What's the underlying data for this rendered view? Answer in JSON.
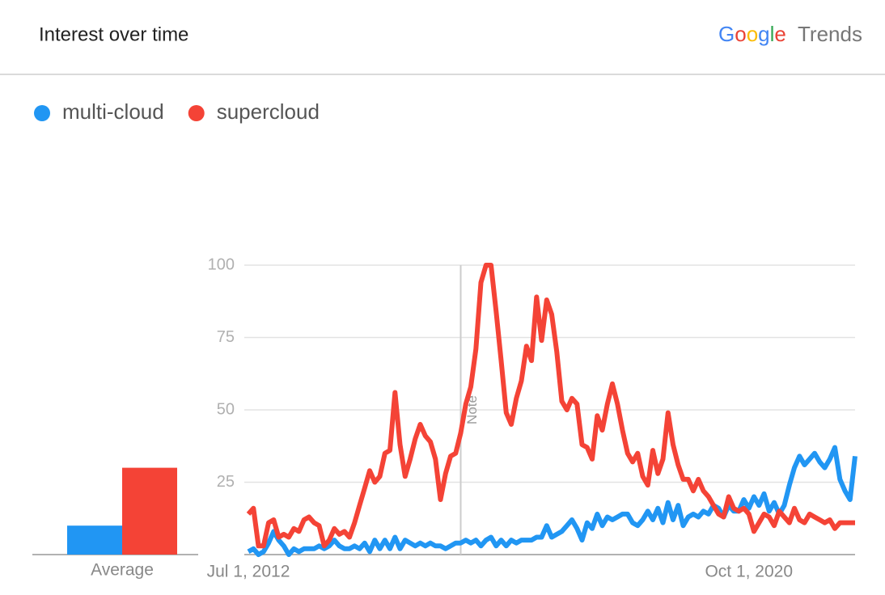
{
  "brand": {
    "name": "Google",
    "product": "Trends"
  },
  "chart_data": [
    {
      "type": "line",
      "title": "Interest over time",
      "categories": [
        "Jul 1, 2012",
        null,
        null,
        null,
        null,
        null,
        null,
        null,
        null,
        null,
        null,
        null,
        null,
        null,
        null,
        null,
        null,
        null,
        null,
        null,
        null,
        null,
        null,
        null,
        null,
        null,
        null,
        null,
        null,
        null,
        null,
        null,
        null,
        null,
        null,
        null,
        null,
        null,
        null,
        null,
        null,
        null,
        null,
        null,
        null,
        null,
        null,
        null,
        null,
        null,
        null,
        null,
        null,
        null,
        null,
        null,
        null,
        null,
        null,
        null,
        null,
        null,
        null,
        null,
        null,
        null,
        null,
        null,
        null,
        null,
        null,
        null,
        null,
        null,
        null,
        null,
        null,
        null,
        null,
        null,
        null,
        null,
        null,
        null,
        null,
        null,
        null,
        null,
        null,
        null,
        null,
        null,
        null,
        null,
        null,
        null,
        null,
        null,
        null,
        "Oct 1, 2020",
        null,
        null,
        null,
        null,
        null,
        null,
        null,
        null,
        null,
        null,
        null,
        null,
        null,
        null,
        null,
        null,
        null,
        null,
        null,
        null,
        null
      ],
      "series": [
        {
          "name": "multi-cloud",
          "color": "#2196f3",
          "values": [
            1,
            2,
            0,
            1,
            4,
            8,
            5,
            3,
            0,
            2,
            1,
            2,
            2,
            2,
            3,
            2,
            3,
            5,
            3,
            2,
            2,
            3,
            2,
            4,
            1,
            5,
            2,
            5,
            2,
            6,
            2,
            5,
            4,
            3,
            4,
            3,
            4,
            3,
            3,
            2,
            3,
            4,
            4,
            5,
            4,
            5,
            3,
            5,
            6,
            3,
            5,
            3,
            5,
            4,
            5,
            5,
            5,
            6,
            6,
            10,
            6,
            7,
            8,
            10,
            12,
            9,
            5,
            11,
            9,
            14,
            10,
            13,
            12,
            13,
            14,
            14,
            11,
            10,
            12,
            15,
            12,
            16,
            11,
            18,
            12,
            17,
            10,
            13,
            14,
            13,
            15,
            14,
            17,
            16,
            13,
            17,
            15,
            15,
            19,
            16,
            20,
            17,
            21,
            15,
            18,
            14,
            17,
            24,
            30,
            34,
            31,
            33,
            35,
            32,
            30,
            33,
            37,
            26,
            22,
            19,
            34
          ]
        },
        {
          "name": "supercloud",
          "color": "#f44336",
          "values": [
            14,
            16,
            3,
            3,
            11,
            12,
            6,
            7,
            6,
            9,
            8,
            12,
            13,
            11,
            10,
            3,
            5,
            9,
            7,
            8,
            6,
            11,
            17,
            23,
            29,
            25,
            27,
            35,
            36,
            56,
            38,
            27,
            33,
            40,
            45,
            41,
            39,
            33,
            19,
            28,
            34,
            35,
            42,
            52,
            58,
            71,
            94,
            100,
            100,
            84,
            67,
            49,
            45,
            54,
            60,
            72,
            67,
            89,
            74,
            88,
            83,
            70,
            53,
            50,
            54,
            52,
            38,
            37,
            33,
            48,
            43,
            52,
            59,
            52,
            43,
            35,
            32,
            35,
            27,
            24,
            36,
            28,
            33,
            49,
            38,
            31,
            26,
            26,
            22,
            26,
            22,
            20,
            17,
            14,
            13,
            20,
            16,
            15,
            16,
            14,
            8,
            11,
            14,
            13,
            10,
            15,
            13,
            11,
            16,
            12,
            11,
            14,
            13,
            12,
            11,
            12,
            9,
            11,
            11,
            11,
            11
          ]
        }
      ],
      "ylim": [
        0,
        100
      ],
      "yticks": [
        25,
        50,
        75,
        100
      ],
      "grid": true,
      "annotations": [
        {
          "label": "Note",
          "at": 42
        }
      ]
    },
    {
      "type": "bar",
      "categories": [
        "Average"
      ],
      "series": [
        {
          "color": "#2196f3",
          "values": [
            10
          ]
        },
        {
          "color": "#f44336",
          "values": [
            30
          ]
        }
      ],
      "ylim": [
        0,
        100
      ]
    }
  ]
}
